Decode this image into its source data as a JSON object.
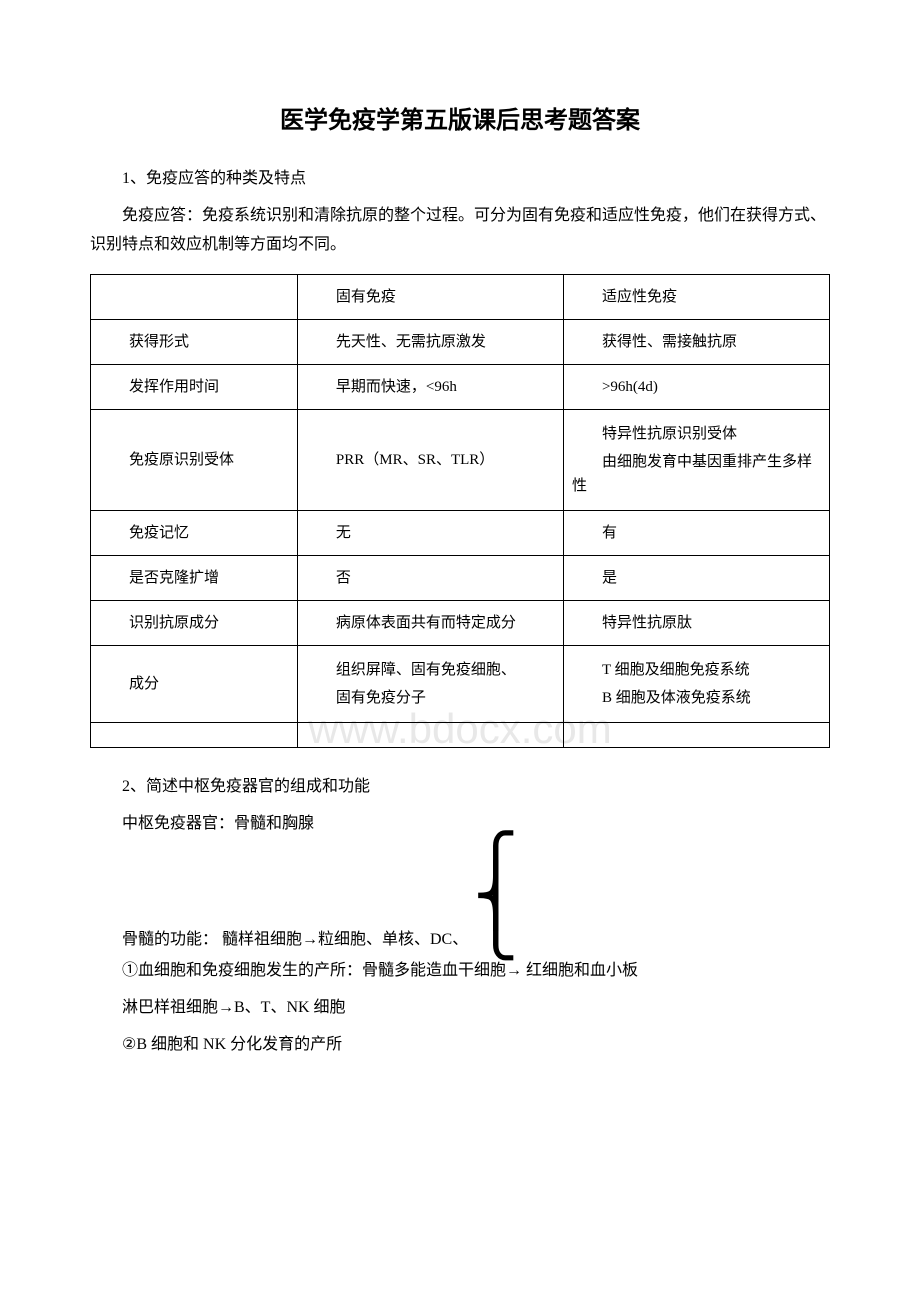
{
  "title": "医学免疫学第五版课后思考题答案",
  "section1": {
    "heading": "1、免疫应答的种类及特点",
    "intro": "免疫应答：免疫系统识别和清除抗原的整个过程。可分为固有免疫和适应性免疫，他们在获得方式、识别特点和效应机制等方面均不同。"
  },
  "table": {
    "header": {
      "c1": "",
      "c2": "固有免疫",
      "c3": "适应性免疫"
    },
    "rows": [
      {
        "c1": "获得形式",
        "c2": "先天性、无需抗原激发",
        "c3": "获得性、需接触抗原"
      },
      {
        "c1": "发挥作用时间",
        "c2": "早期而快速，<96h",
        "c3": ">96h(4d)"
      },
      {
        "c1": "免疫原识别受体",
        "c2": "PRR（MR、SR、TLR）",
        "c3_line1": "特异性抗原识别受体",
        "c3_line2": "由细胞发育中基因重排产生多样性"
      },
      {
        "c1": "免疫记忆",
        "c2": "无",
        "c3": "有"
      },
      {
        "c1": "是否克隆扩增",
        "c2": "否",
        "c3": "是"
      },
      {
        "c1": "识别抗原成分",
        "c2": "病原体表面共有而特定成分",
        "c3": "特异性抗原肽"
      },
      {
        "c1": "成分",
        "c2_line1": "组织屏障、固有免疫细胞、",
        "c2_line2": "固有免疫分子",
        "c3_line1": "T 细胞及细胞免疫系统",
        "c3_line2": "B 细胞及体液免疫系统"
      }
    ]
  },
  "section2": {
    "heading": "2、简述中枢免疫器官的组成和功能",
    "line1": "中枢免疫器官：骨髓和胸腺",
    "brace_text": "骨髓的功能：  髓样祖细胞→粒细胞、单核、DC、",
    "line2": "①血细胞和免疫细胞发生的产所：骨髓多能造血干细胞→ 红细胞和血小板",
    "line3": "淋巴样祖细胞→B、T、NK 细胞",
    "line4": "②B 细胞和 NK 分化发育的产所"
  },
  "watermark": "www.bdocx.com"
}
